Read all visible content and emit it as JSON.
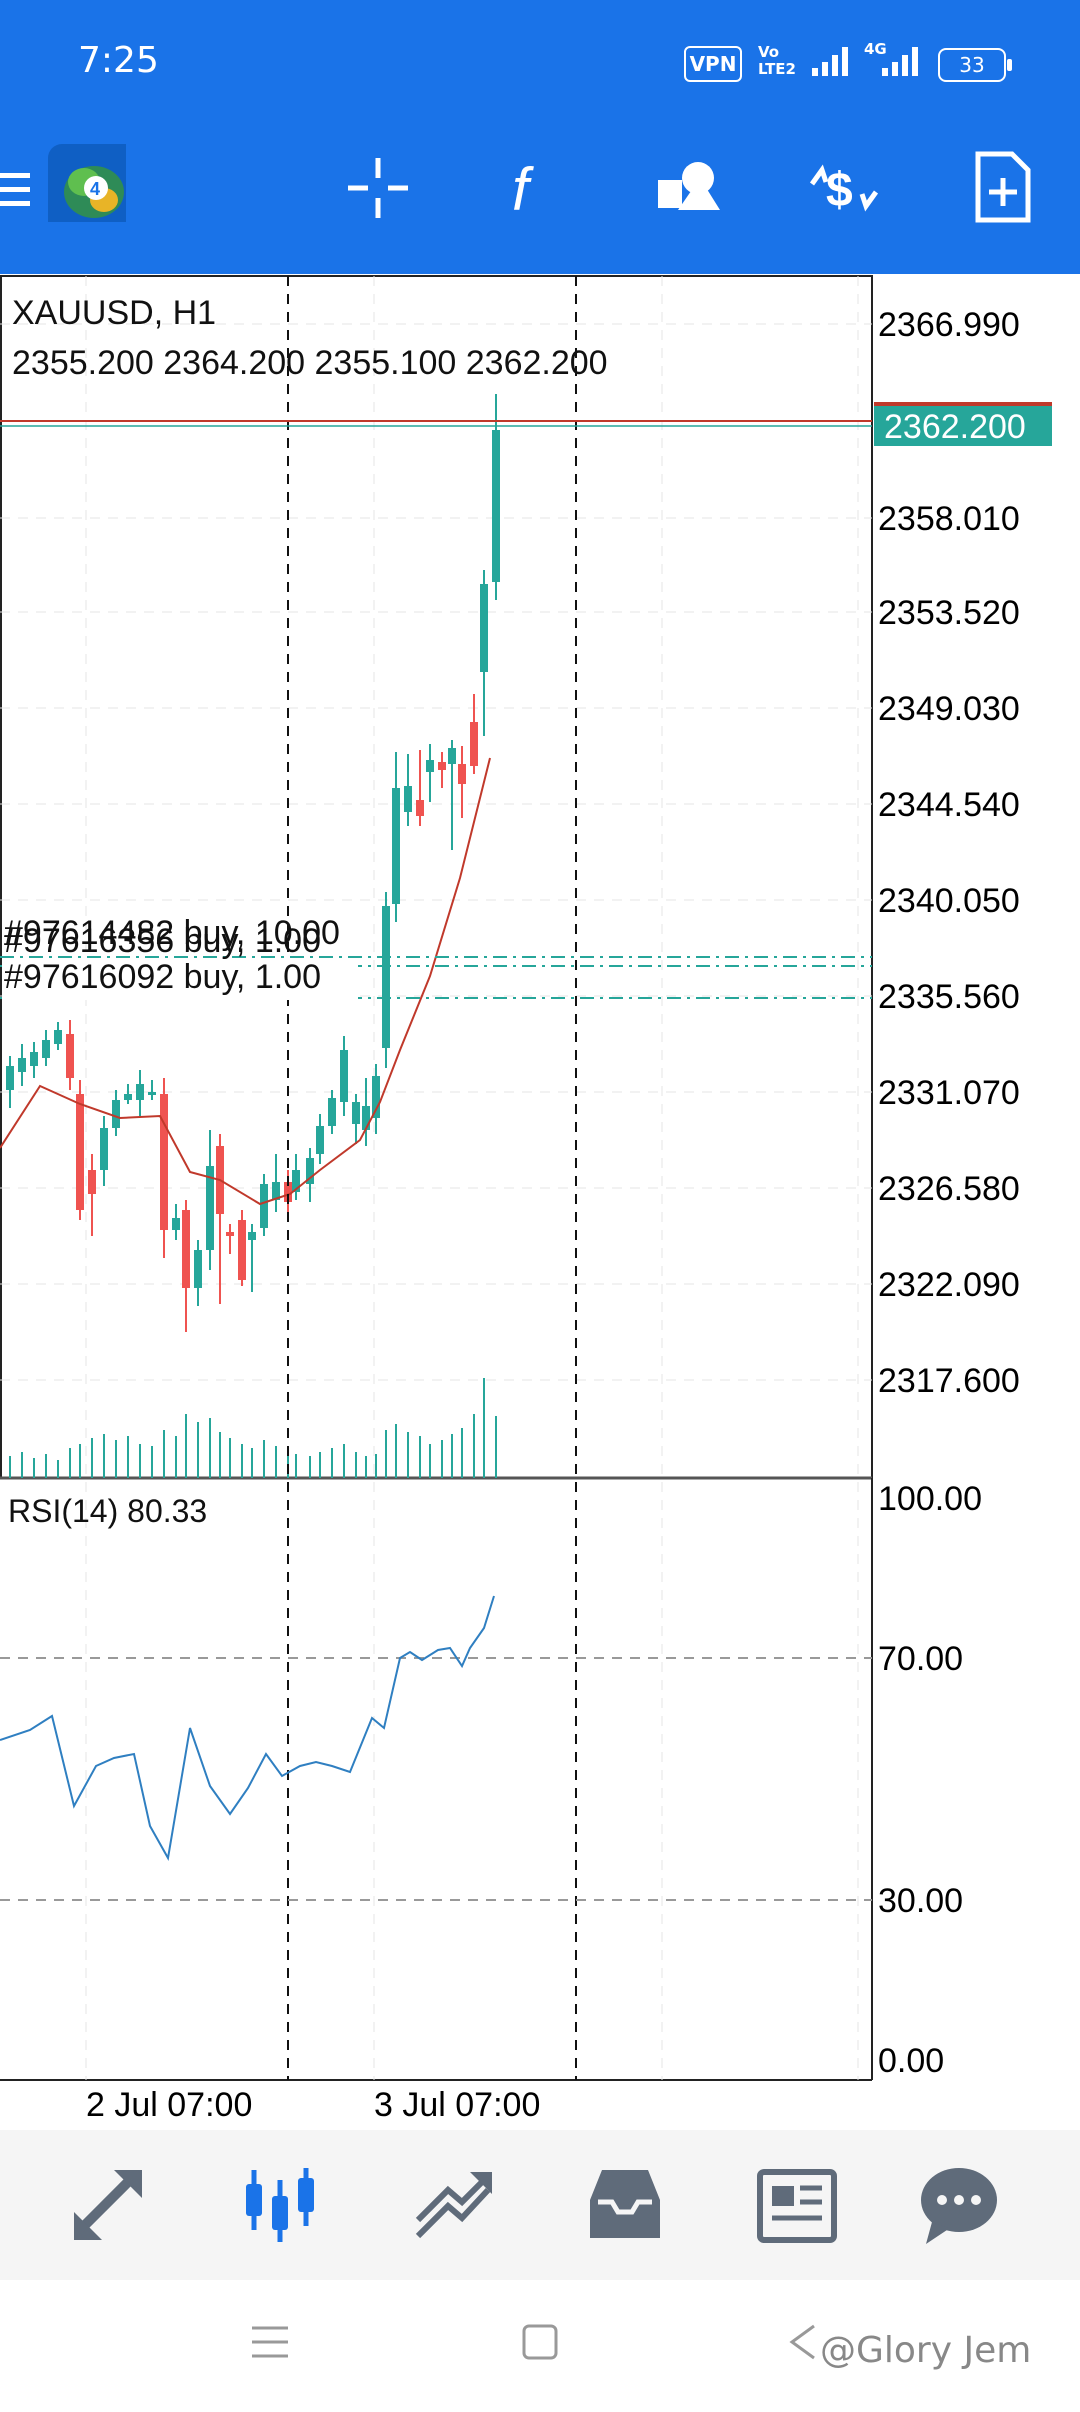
{
  "status_bar": {
    "time": "7:25",
    "vpn": "VPN",
    "volte_top": "Vo",
    "volte_bottom": "LTE2",
    "network": "4G",
    "battery": "33"
  },
  "toolbar": {
    "icons": [
      "menu-icon",
      "metatrader-logo-icon",
      "crosshair-icon",
      "indicator-f-icon",
      "objects-icon",
      "trade-dollar-icon",
      "new-order-icon"
    ]
  },
  "chart": {
    "symbol_line": "XAUUSD, H1",
    "ohlc_line": "2355.200 2364.200 2355.100 2362.200",
    "current_price": "2362.200",
    "price_labels": [
      "2366.990",
      "2358.010",
      "2353.520",
      "2349.030",
      "2344.540",
      "2340.050",
      "2335.560",
      "2331.070",
      "2326.580",
      "2322.090",
      "2317.600"
    ],
    "order_labels": [
      "#97614482 buy, 10.00",
      "#97616356 buy, 1.00",
      "#97616092 buy, 1.00"
    ],
    "rsi_label": "RSI(14) 80.33",
    "rsi_levels": [
      "100.00",
      "70.00",
      "30.00",
      "0.00"
    ],
    "time_labels": [
      "2 Jul 07:00",
      "3 Jul 07:00"
    ],
    "colors": {
      "bull": "#26a69a",
      "bear": "#ef5350",
      "ma": "#c0392b",
      "rsi": "#2f7fc1",
      "price_tag": "#26a69a"
    }
  },
  "bottom_nav": {
    "items": [
      "quotes-icon",
      "chart-icon",
      "trade-icon",
      "history-icon",
      "news-icon",
      "messages-icon"
    ]
  },
  "system_nav": {
    "watermark": "@Glory Jem"
  }
}
